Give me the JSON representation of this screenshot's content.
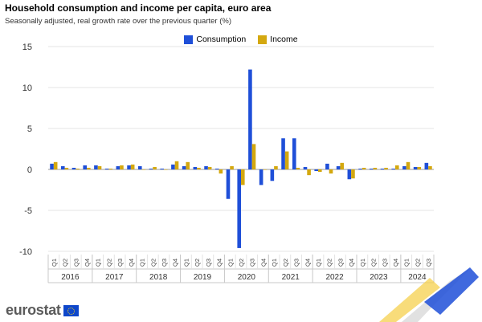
{
  "header": {
    "title": "Household consumption and income per capita, euro area",
    "subtitle": "Seasonally adjusted, real growth rate over the previous quarter (%)"
  },
  "brand": {
    "name": "eurostat"
  },
  "chart_data": {
    "type": "bar",
    "ylim": [
      -10,
      15
    ],
    "yticks": [
      -10,
      -5,
      0,
      5,
      10,
      15
    ],
    "grid": true,
    "legend_position": "top-center",
    "years": [
      "2016",
      "2017",
      "2018",
      "2019",
      "2020",
      "2021",
      "2022",
      "2023",
      "2024"
    ],
    "categories": [
      "Q1",
      "Q2",
      "Q3",
      "Q4",
      "Q1",
      "Q2",
      "Q3",
      "Q4",
      "Q1",
      "Q2",
      "Q3",
      "Q4",
      "Q1",
      "Q2",
      "Q3",
      "Q4",
      "Q1",
      "Q2",
      "Q3",
      "Q4",
      "Q1",
      "Q2",
      "Q3",
      "Q4",
      "Q1",
      "Q2",
      "Q3",
      "Q4",
      "Q1",
      "Q2",
      "Q3",
      "Q4",
      "Q1",
      "Q2",
      "Q3"
    ],
    "series": [
      {
        "name": "Consumption",
        "color": "#1f4fd8",
        "values": [
          0.7,
          0.4,
          0.2,
          0.5,
          0.5,
          0.1,
          0.4,
          0.5,
          0.4,
          0.1,
          0.1,
          0.6,
          0.4,
          0.3,
          0.4,
          0.1,
          -3.6,
          -9.6,
          12.2,
          -1.9,
          -1.4,
          3.8,
          3.8,
          0.3,
          -0.2,
          0.7,
          0.4,
          -1.2,
          0.1,
          0.1,
          0.1,
          0.1,
          0.4,
          0.3,
          0.8
        ]
      },
      {
        "name": "Income",
        "color": "#d4a80f",
        "values": [
          0.9,
          0.2,
          0.1,
          0.2,
          0.4,
          0.1,
          0.5,
          0.6,
          0.0,
          0.3,
          0.0,
          1.0,
          0.9,
          0.2,
          0.3,
          -0.5,
          0.4,
          -1.9,
          3.1,
          0.0,
          0.4,
          2.2,
          0.2,
          -0.7,
          -0.3,
          -0.5,
          0.8,
          -1.1,
          0.2,
          0.2,
          0.2,
          0.5,
          0.9,
          0.3,
          0.4
        ]
      }
    ]
  }
}
